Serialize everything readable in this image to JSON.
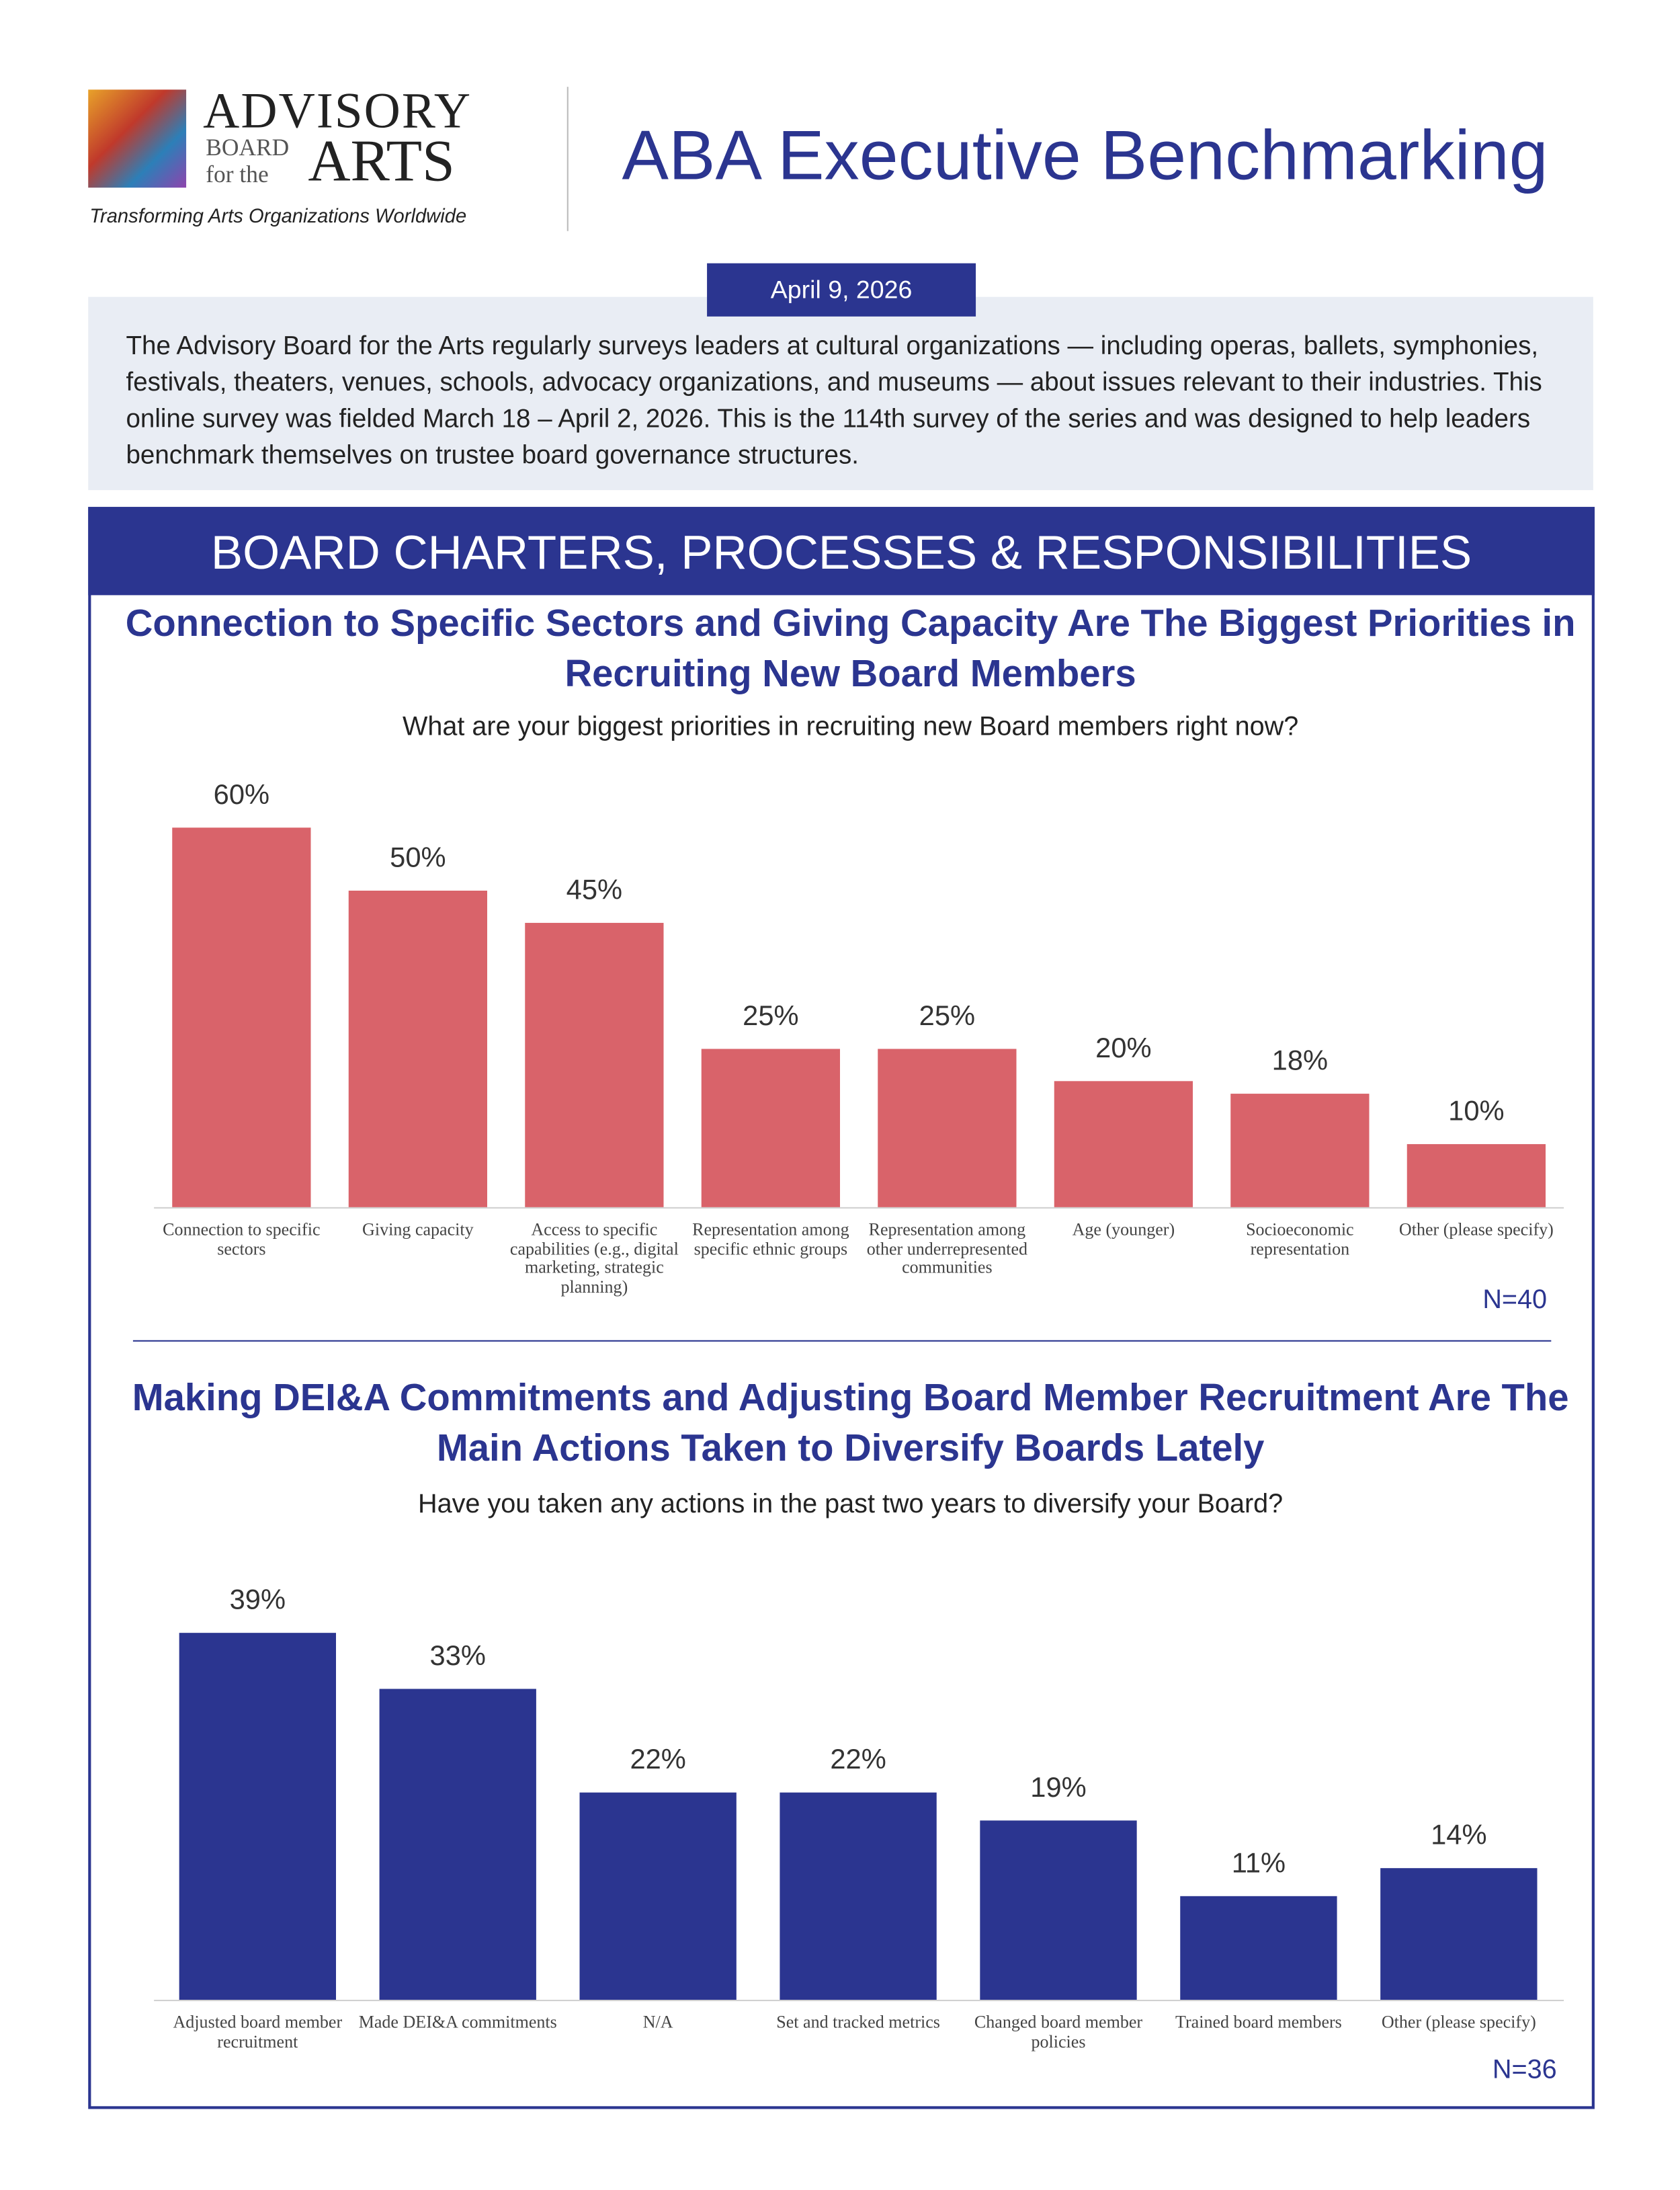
{
  "header": {
    "logo": {
      "line1": "ADVISORY",
      "line2": "BOARD",
      "line3": "for the",
      "line4": "ARTS",
      "tagline": "Transforming Arts Organizations Worldwide"
    },
    "title": "ABA Executive Benchmarking",
    "date": "April 9, 2026"
  },
  "intro": "The Advisory Board for the Arts regularly surveys leaders at cultural organizations — including operas, ballets, symphonies, festivals, theaters, venues, schools, advocacy organizations, and museums — about issues relevant to their industries. This online survey was fielded March 18 – April 2, 2026. This is the 114th survey of the series and was designed to help leaders benchmark themselves on trustee board governance structures.",
  "section_title": "BOARD CHARTERS, PROCESSES & RESPONSIBILITIES",
  "chart_data": [
    {
      "type": "bar",
      "title": "Connection to Specific Sectors and Giving Capacity Are The Biggest Priorities in Recruiting New Board Members",
      "subtitle": "What are your biggest priorities in recruiting new Board members right now?",
      "categories": [
        "Connection to specific sectors",
        "Giving capacity",
        "Access to specific capabilities (e.g., digital marketing, strategic planning)",
        "Representation among specific ethnic groups",
        "Representation among other underrepresented communities",
        "Age (younger)",
        "Socioeconomic representation",
        "Other (please specify)"
      ],
      "values": [
        60,
        50,
        45,
        25,
        25,
        20,
        18,
        10
      ],
      "value_labels": [
        "60%",
        "50%",
        "45%",
        "25%",
        "25%",
        "20%",
        "18%",
        "10%"
      ],
      "color": "#d9636a",
      "note": "N=40"
    },
    {
      "type": "bar",
      "title": "Making DEI&A Commitments and Adjusting Board Member Recruitment Are The Main Actions Taken to Diversify Boards Lately",
      "subtitle": "Have you taken any actions in the past two years to diversify your Board?",
      "categories": [
        "Adjusted board member recruitment",
        "Made DEI&A commitments",
        "N/A",
        "Set and tracked metrics",
        "Changed board member policies",
        "Trained board members",
        "Other (please specify)"
      ],
      "values": [
        39,
        33,
        22,
        22,
        19,
        11,
        14
      ],
      "value_labels": [
        "39%",
        "33%",
        "22%",
        "22%",
        "19%",
        "11%",
        "14%"
      ],
      "color": "#2b3590",
      "note": "N=36"
    }
  ]
}
